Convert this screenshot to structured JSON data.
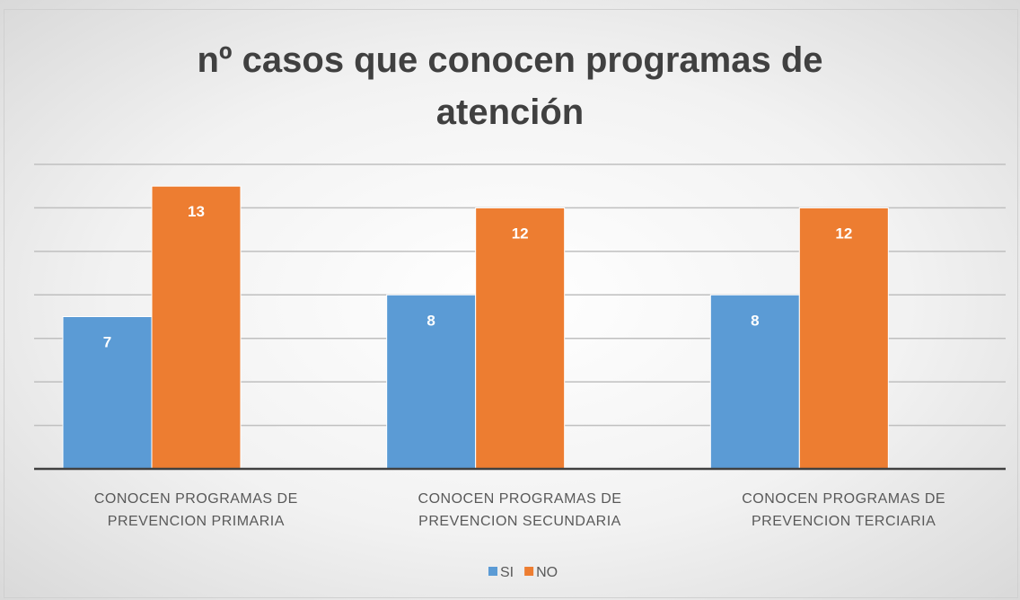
{
  "chart_data": {
    "type": "bar",
    "title": "nº casos que conocen programas de atención",
    "categories": [
      "CONOCEN PROGRAMAS DE\nPREVENCION PRIMARIA",
      "CONOCEN PROGRAMAS DE\nPREVENCION SECUNDARIA",
      "CONOCEN PROGRAMAS DE\nPREVENCION TERCIARIA"
    ],
    "series": [
      {
        "name": "SI",
        "color": "#5b9bd5",
        "values": [
          7,
          8,
          8
        ]
      },
      {
        "name": "NO",
        "color": "#ed7d31",
        "values": [
          13,
          12,
          12
        ]
      }
    ],
    "ylim": [
      0,
      14
    ],
    "yticks": [
      0,
      2,
      4,
      6,
      8,
      10,
      12,
      14
    ],
    "grid": true,
    "legend": "bottom"
  }
}
